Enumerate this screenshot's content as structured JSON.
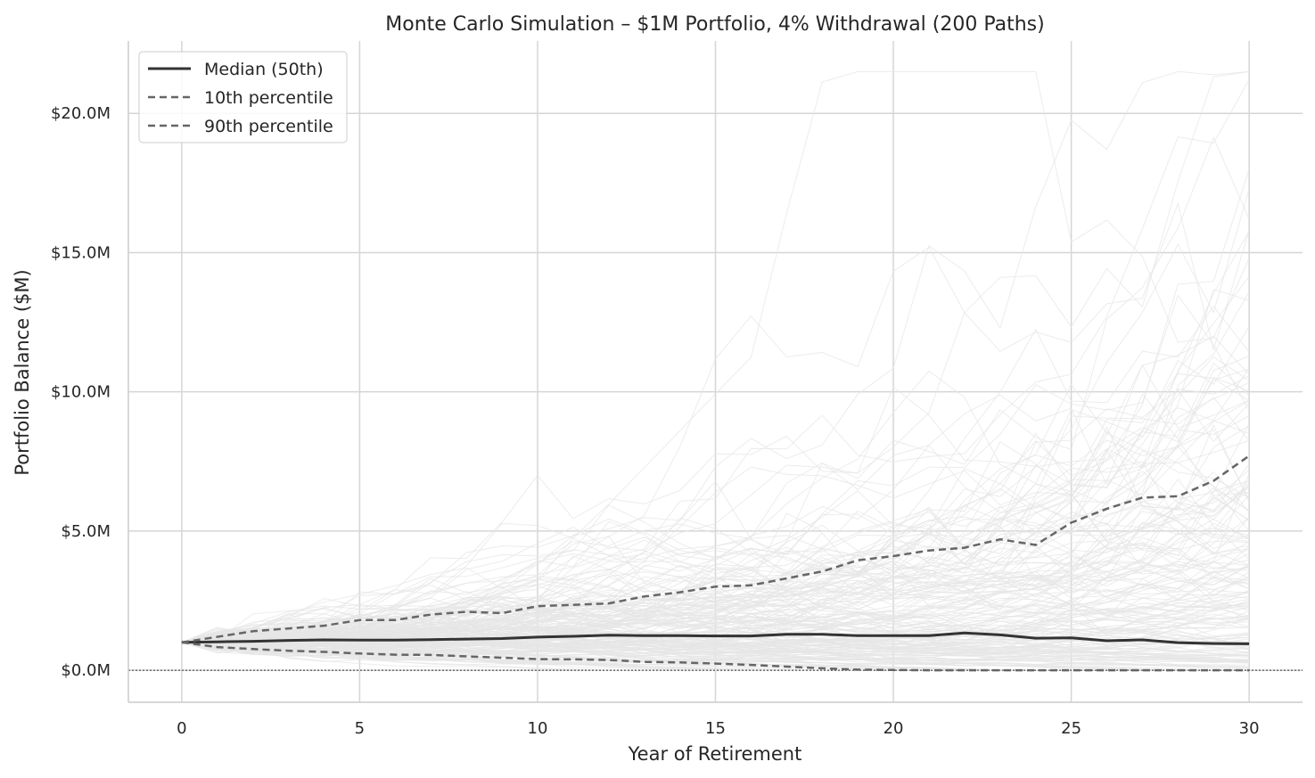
{
  "chart_data": {
    "type": "line",
    "title": "Monte Carlo Simulation – $1M Portfolio, 4% Withdrawal (200 Paths)",
    "xlabel": "Year of Retirement",
    "ylabel": "Portfolio Balance ($M)",
    "xlim": [
      -1.5,
      31.5
    ],
    "ylim": [
      -1.15,
      22.6
    ],
    "x_ticks": [
      0,
      5,
      10,
      15,
      20,
      25,
      30
    ],
    "x_tick_labels": [
      "0",
      "5",
      "10",
      "15",
      "20",
      "25",
      "30"
    ],
    "y_ticks": [
      0,
      5,
      10,
      15,
      20
    ],
    "y_tick_labels": [
      "$0.0M",
      "$5.0M",
      "$10.0M",
      "$15.0M",
      "$20.0M"
    ],
    "grid": true,
    "legend_position": "top-left",
    "zero_reference_line": 0,
    "simulated_paths": {
      "count": 200,
      "initial_value": 1.0,
      "max_final_value_approx": 21.5,
      "color": "#e6e6e6"
    },
    "x": [
      0,
      1,
      2,
      3,
      4,
      5,
      6,
      7,
      8,
      9,
      10,
      11,
      12,
      13,
      14,
      15,
      16,
      17,
      18,
      19,
      20,
      21,
      22,
      23,
      24,
      25,
      26,
      27,
      28,
      29,
      30
    ],
    "series": [
      {
        "name": "Median (50th)",
        "style": "solid",
        "color": "#333333",
        "values": [
          1.0,
          1.02,
          1.04,
          1.07,
          1.09,
          1.08,
          1.08,
          1.1,
          1.12,
          1.14,
          1.19,
          1.22,
          1.26,
          1.24,
          1.24,
          1.23,
          1.23,
          1.29,
          1.29,
          1.24,
          1.24,
          1.24,
          1.34,
          1.27,
          1.15,
          1.16,
          1.06,
          1.09,
          0.99,
          0.96,
          0.95
        ]
      },
      {
        "name": "10th percentile",
        "style": "dashed",
        "color": "#666666",
        "values": [
          1.0,
          0.83,
          0.76,
          0.7,
          0.66,
          0.6,
          0.56,
          0.55,
          0.5,
          0.45,
          0.4,
          0.39,
          0.37,
          0.3,
          0.28,
          0.24,
          0.19,
          0.13,
          0.07,
          0.02,
          0.01,
          0.0,
          0.0,
          0.0,
          0.0,
          0.0,
          0.0,
          0.0,
          0.0,
          0.0,
          0.0
        ]
      },
      {
        "name": "90th percentile",
        "style": "dashed",
        "color": "#666666",
        "values": [
          1.0,
          1.2,
          1.4,
          1.5,
          1.6,
          1.8,
          1.8,
          2.0,
          2.1,
          2.05,
          2.3,
          2.35,
          2.4,
          2.65,
          2.8,
          3.0,
          3.05,
          3.3,
          3.55,
          3.95,
          4.1,
          4.3,
          4.4,
          4.7,
          4.5,
          5.3,
          5.8,
          6.2,
          6.25,
          6.8,
          7.7
        ]
      }
    ]
  }
}
